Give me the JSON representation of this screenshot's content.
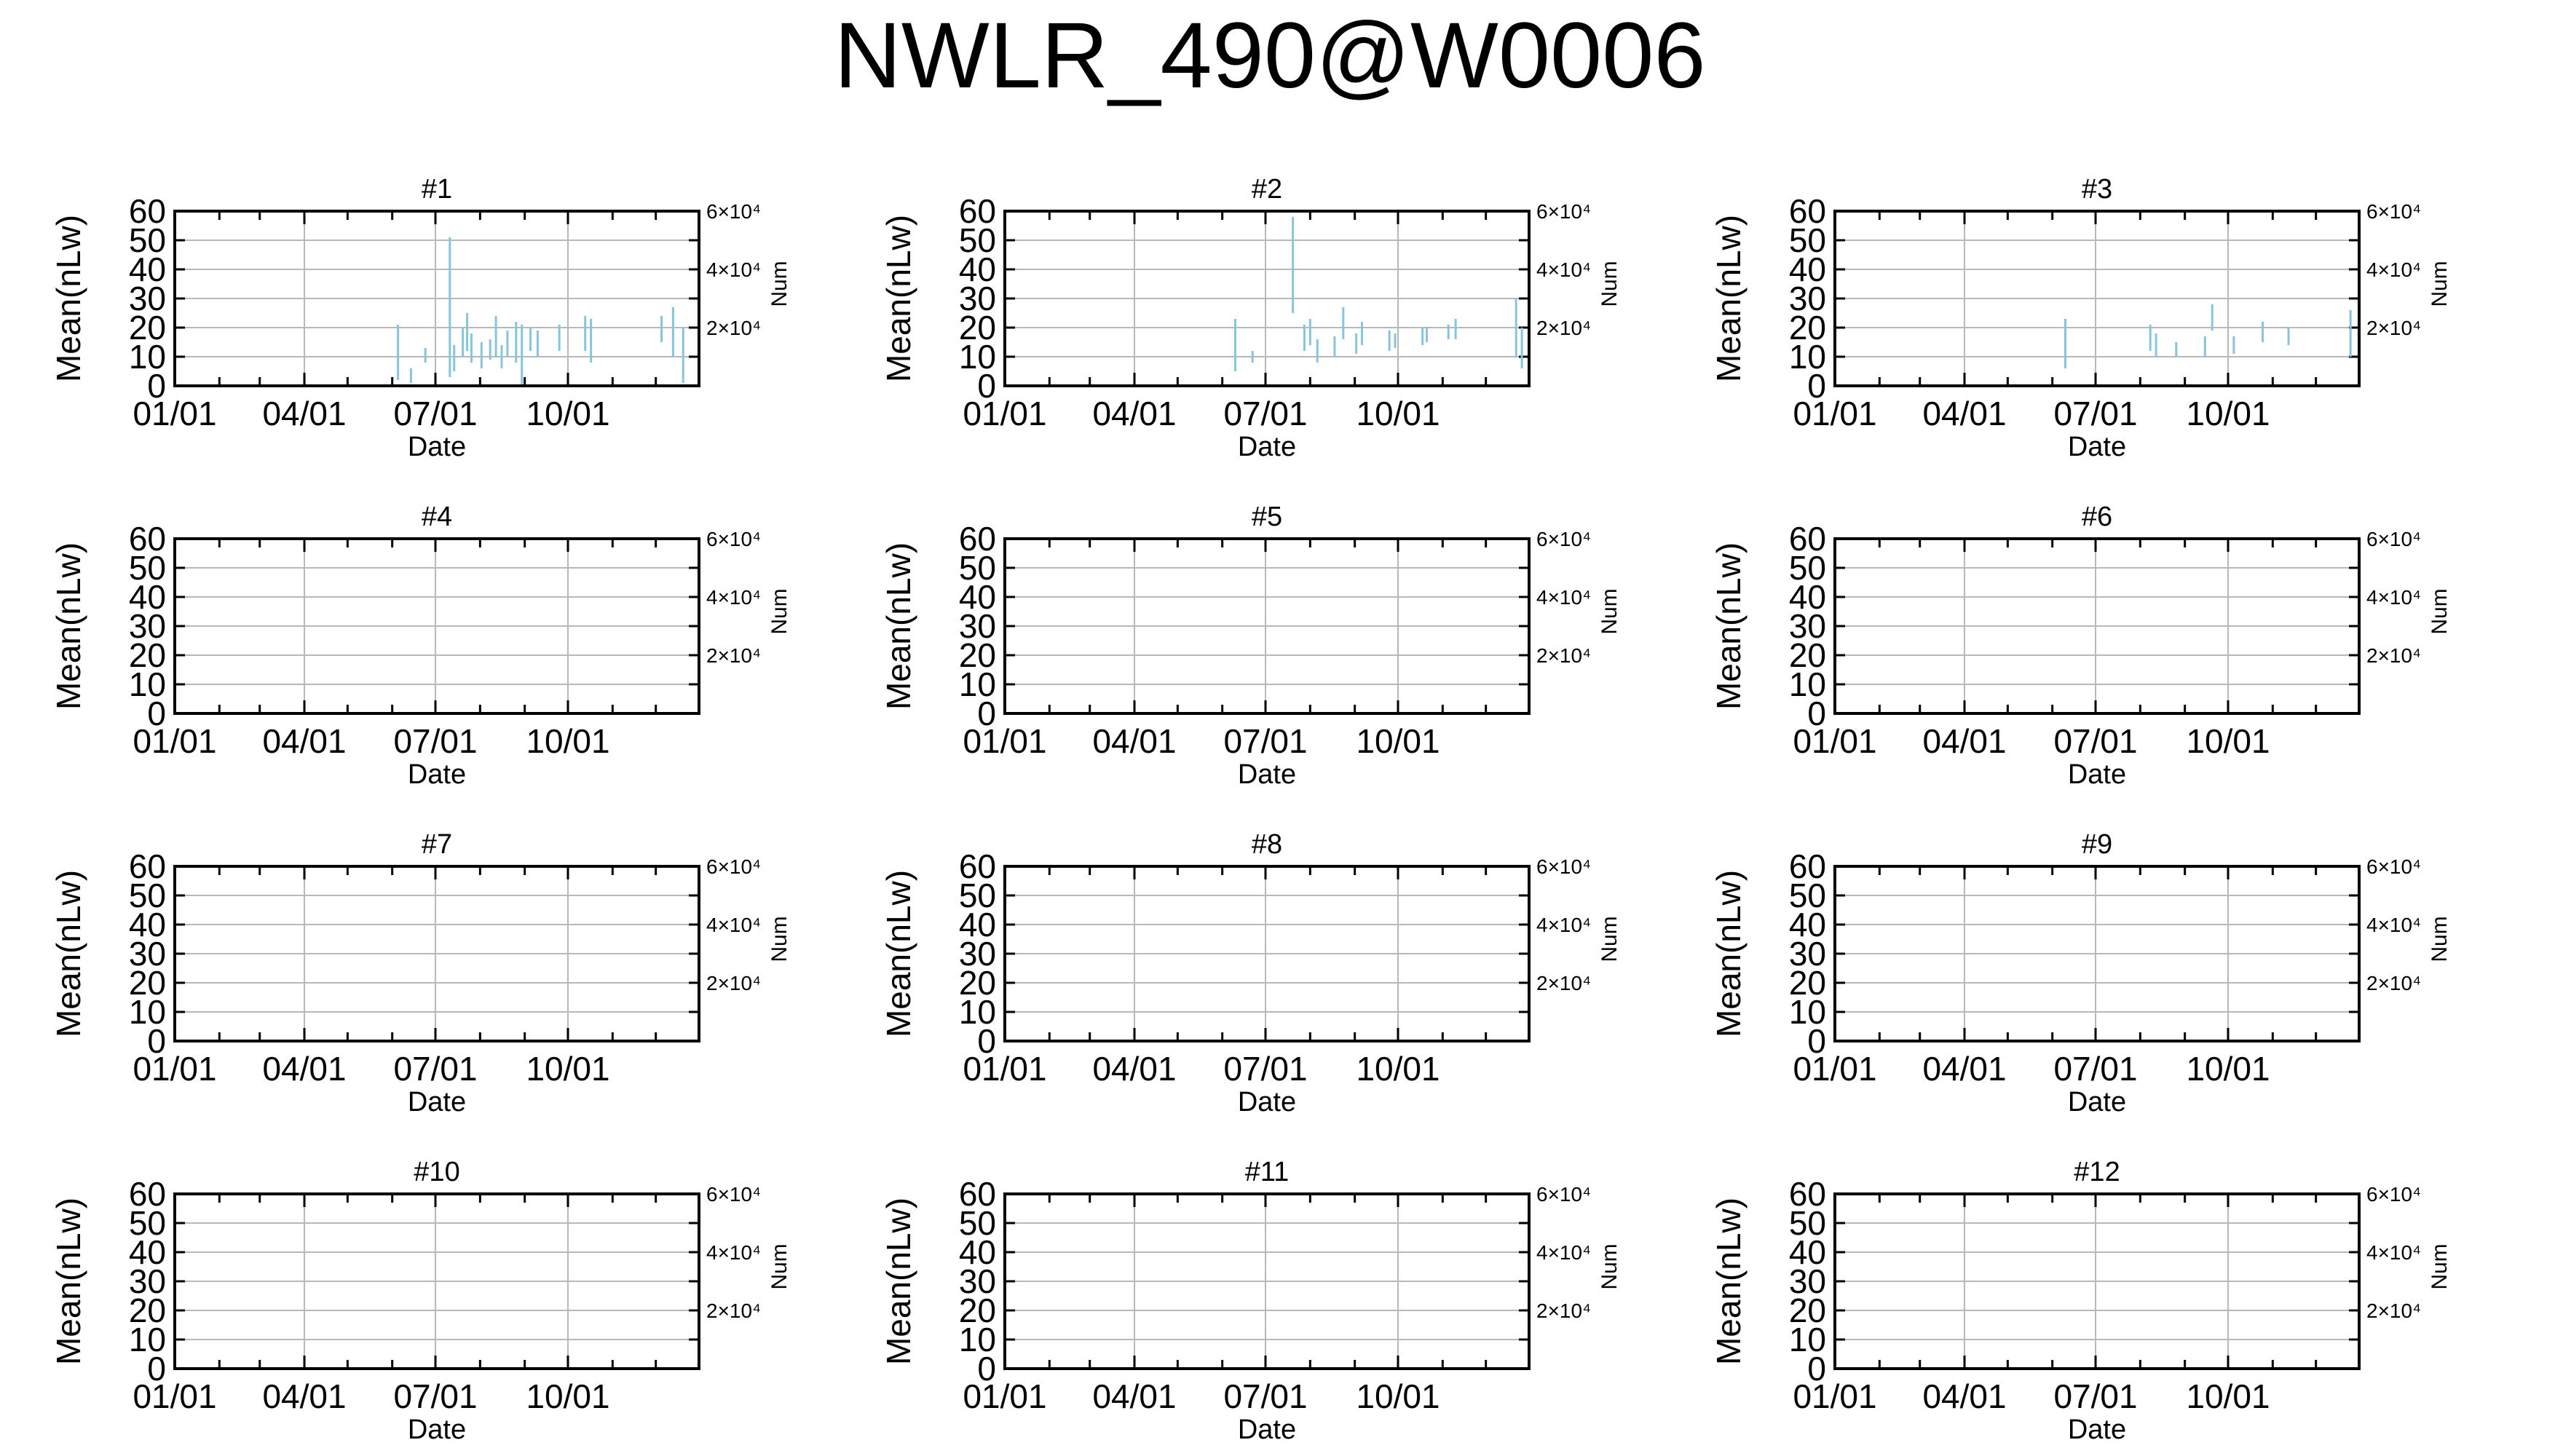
{
  "page_title": "NWLR_490@W0006",
  "colors": {
    "axis": "#000000",
    "grid": "#b8b8b8",
    "series": "#87c5dc",
    "background": "#ffffff"
  },
  "labels": {
    "ylabel": "Mean(nLw)",
    "y2label": "Num",
    "xlabel": "Date",
    "yticks": [
      "0",
      "10",
      "20",
      "30",
      "40",
      "50",
      "60"
    ],
    "y2ticks": [
      "2×10⁴",
      "4×10⁴",
      "6×10⁴"
    ],
    "xticks": [
      "01/01",
      "04/01",
      "07/01",
      "10/01"
    ]
  },
  "chart_data": [
    {
      "type": "bar",
      "title": "#1",
      "grid": true,
      "ylim": [
        0,
        60
      ],
      "y2lim": [
        0,
        60000
      ],
      "xlim": [
        "2023-01-01",
        "2023-12-31"
      ],
      "bars": [
        {
          "x": "2023-06-05",
          "low": 2,
          "high": 21
        },
        {
          "x": "2023-06-14",
          "low": 1,
          "high": 6
        },
        {
          "x": "2023-06-24",
          "low": 8,
          "high": 13
        },
        {
          "x": "2023-07-11",
          "low": 3,
          "high": 51
        },
        {
          "x": "2023-07-14",
          "low": 5,
          "high": 14
        },
        {
          "x": "2023-07-20",
          "low": 10,
          "high": 20
        },
        {
          "x": "2023-07-23",
          "low": 12,
          "high": 25
        },
        {
          "x": "2023-07-26",
          "low": 8,
          "high": 18
        },
        {
          "x": "2023-08-02",
          "low": 6,
          "high": 15
        },
        {
          "x": "2023-08-08",
          "low": 9,
          "high": 16
        },
        {
          "x": "2023-08-12",
          "low": 10,
          "high": 24
        },
        {
          "x": "2023-08-16",
          "low": 6,
          "high": 14
        },
        {
          "x": "2023-08-20",
          "low": 10,
          "high": 19
        },
        {
          "x": "2023-08-26",
          "low": 8,
          "high": 22
        },
        {
          "x": "2023-08-30",
          "low": 0,
          "high": 21
        },
        {
          "x": "2023-09-05",
          "low": 12,
          "high": 20
        },
        {
          "x": "2023-09-10",
          "low": 10,
          "high": 19
        },
        {
          "x": "2023-09-25",
          "low": 12,
          "high": 21
        },
        {
          "x": "2023-10-13",
          "low": 12,
          "high": 24
        },
        {
          "x": "2023-10-17",
          "low": 8,
          "high": 23
        },
        {
          "x": "2023-12-05",
          "low": 15,
          "high": 24
        },
        {
          "x": "2023-12-13",
          "low": 10,
          "high": 27
        },
        {
          "x": "2023-12-20",
          "low": 1,
          "high": 20
        }
      ]
    },
    {
      "type": "bar",
      "title": "#2",
      "grid": true,
      "ylim": [
        0,
        60
      ],
      "y2lim": [
        0,
        60000
      ],
      "xlim": [
        "2023-01-01",
        "2023-12-31"
      ],
      "bars": [
        {
          "x": "2023-06-10",
          "low": 5,
          "high": 23
        },
        {
          "x": "2023-06-22",
          "low": 8,
          "high": 12
        },
        {
          "x": "2023-07-20",
          "low": 25,
          "high": 58
        },
        {
          "x": "2023-07-28",
          "low": 12,
          "high": 21
        },
        {
          "x": "2023-08-01",
          "low": 14,
          "high": 23
        },
        {
          "x": "2023-08-06",
          "low": 8,
          "high": 16
        },
        {
          "x": "2023-08-18",
          "low": 10,
          "high": 17
        },
        {
          "x": "2023-08-24",
          "low": 16,
          "high": 27
        },
        {
          "x": "2023-09-02",
          "low": 11,
          "high": 18
        },
        {
          "x": "2023-09-06",
          "low": 14,
          "high": 22
        },
        {
          "x": "2023-09-25",
          "low": 12,
          "high": 19
        },
        {
          "x": "2023-09-29",
          "low": 13,
          "high": 18
        },
        {
          "x": "2023-10-18",
          "low": 14,
          "high": 20
        },
        {
          "x": "2023-10-21",
          "low": 15,
          "high": 20
        },
        {
          "x": "2023-11-05",
          "low": 16,
          "high": 21
        },
        {
          "x": "2023-11-10",
          "low": 16,
          "high": 23
        },
        {
          "x": "2023-12-22",
          "low": 10,
          "high": 30
        },
        {
          "x": "2023-12-26",
          "low": 6,
          "high": 20
        }
      ]
    },
    {
      "type": "bar",
      "title": "#3",
      "grid": true,
      "ylim": [
        0,
        60
      ],
      "y2lim": [
        0,
        60000
      ],
      "xlim": [
        "2023-01-01",
        "2023-12-31"
      ],
      "bars": [
        {
          "x": "2023-06-10",
          "low": 6,
          "high": 23
        },
        {
          "x": "2023-08-08",
          "low": 12,
          "high": 21
        },
        {
          "x": "2023-08-12",
          "low": 10,
          "high": 18
        },
        {
          "x": "2023-08-26",
          "low": 10,
          "high": 15
        },
        {
          "x": "2023-09-15",
          "low": 10,
          "high": 17
        },
        {
          "x": "2023-09-20",
          "low": 19,
          "high": 28
        },
        {
          "x": "2023-10-05",
          "low": 11,
          "high": 17
        },
        {
          "x": "2023-10-25",
          "low": 15,
          "high": 22
        },
        {
          "x": "2023-11-12",
          "low": 14,
          "high": 20
        },
        {
          "x": "2023-12-25",
          "low": 10,
          "high": 26
        }
      ]
    },
    {
      "type": "bar",
      "title": "#4",
      "grid": true,
      "ylim": [
        0,
        60
      ],
      "y2lim": [
        0,
        60000
      ],
      "xlim": [
        "2023-01-01",
        "2023-12-31"
      ],
      "bars": []
    },
    {
      "type": "bar",
      "title": "#5",
      "grid": true,
      "ylim": [
        0,
        60
      ],
      "y2lim": [
        0,
        60000
      ],
      "xlim": [
        "2023-01-01",
        "2023-12-31"
      ],
      "bars": []
    },
    {
      "type": "bar",
      "title": "#6",
      "grid": true,
      "ylim": [
        0,
        60
      ],
      "y2lim": [
        0,
        60000
      ],
      "xlim": [
        "2023-01-01",
        "2023-12-31"
      ],
      "bars": []
    },
    {
      "type": "bar",
      "title": "#7",
      "grid": true,
      "ylim": [
        0,
        60
      ],
      "y2lim": [
        0,
        60000
      ],
      "xlim": [
        "2023-01-01",
        "2023-12-31"
      ],
      "bars": []
    },
    {
      "type": "bar",
      "title": "#8",
      "grid": true,
      "ylim": [
        0,
        60
      ],
      "y2lim": [
        0,
        60000
      ],
      "xlim": [
        "2023-01-01",
        "2023-12-31"
      ],
      "bars": []
    },
    {
      "type": "bar",
      "title": "#9",
      "grid": true,
      "ylim": [
        0,
        60
      ],
      "y2lim": [
        0,
        60000
      ],
      "xlim": [
        "2023-01-01",
        "2023-12-31"
      ],
      "bars": []
    },
    {
      "type": "bar",
      "title": "#10",
      "grid": true,
      "ylim": [
        0,
        60
      ],
      "y2lim": [
        0,
        60000
      ],
      "xlim": [
        "2023-01-01",
        "2023-12-31"
      ],
      "bars": []
    },
    {
      "type": "bar",
      "title": "#11",
      "grid": true,
      "ylim": [
        0,
        60
      ],
      "y2lim": [
        0,
        60000
      ],
      "xlim": [
        "2023-01-01",
        "2023-12-31"
      ],
      "bars": []
    },
    {
      "type": "bar",
      "title": "#12",
      "grid": true,
      "ylim": [
        0,
        60
      ],
      "y2lim": [
        0,
        60000
      ],
      "xlim": [
        "2023-01-01",
        "2023-12-31"
      ],
      "bars": []
    }
  ]
}
